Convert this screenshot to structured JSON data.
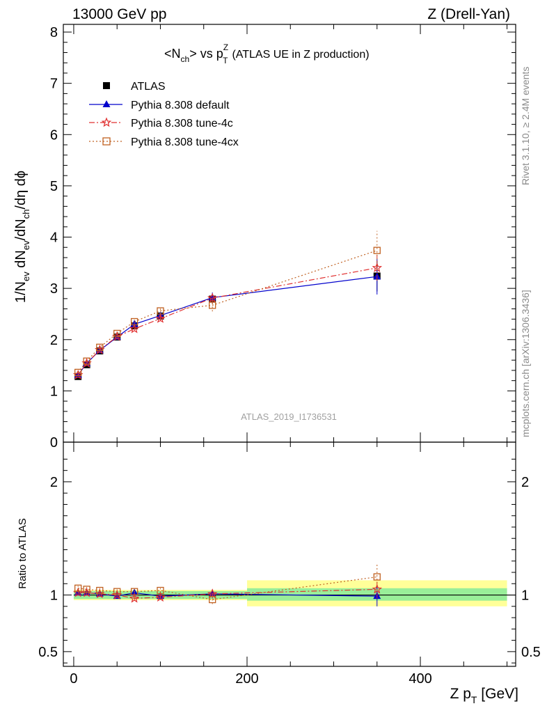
{
  "header": {
    "left": "13000 GeV pp",
    "right": "Z (Drell-Yan)"
  },
  "side_labels": {
    "rivet": "Rivet 3.1.10, ≥ 2.4M events",
    "mcplots": "mcplots.cern.ch [arXiv:1306.3436]"
  },
  "watermark": "ATLAS_2019_I1736531",
  "chart_data": [
    {
      "type": "scatter",
      "title_parts": {
        "lt": "<",
        "n": "N",
        "ch": "ch",
        "gt": ">",
        "vs": " vs ",
        "p": "p",
        "sup": "Z",
        "sub": "T"
      },
      "subtitle": "(ATLAS UE in Z production)",
      "ylabel_parts": {
        "a": "1/N",
        "a_sub": "ev",
        "b": " dN",
        "b_sub": "ev",
        "c": "/dN",
        "c_sub": "ch",
        "d": "/dη dϕ"
      },
      "xlim": [
        -12,
        510
      ],
      "ylim": [
        0,
        8.15
      ],
      "yticks": [
        0,
        1,
        2,
        3,
        4,
        5,
        6,
        7,
        8
      ],
      "legend_position": "top-left",
      "x": [
        5,
        15,
        30,
        50,
        70,
        100,
        160,
        350
      ],
      "series": [
        {
          "name": "ATLAS",
          "style": "data",
          "color": "#000000",
          "values": [
            1.28,
            1.51,
            1.78,
            2.05,
            2.27,
            2.46,
            2.79,
            3.24
          ],
          "errors": [
            0.02,
            0.02,
            0.03,
            0.03,
            0.04,
            0.05,
            0.09,
            0.3
          ]
        },
        {
          "name": "Pythia 8.308 default",
          "style": "solid",
          "color": "#0000cc",
          "values": [
            1.31,
            1.54,
            1.79,
            2.05,
            2.3,
            2.47,
            2.82,
            3.23
          ],
          "errors": [
            0.02,
            0.02,
            0.03,
            0.04,
            0.04,
            0.05,
            0.1,
            0.35
          ]
        },
        {
          "name": "Pythia 8.308 tune-4c",
          "style": "dashdot",
          "color": "#e03030",
          "values": [
            1.31,
            1.54,
            1.8,
            2.06,
            2.21,
            2.41,
            2.81,
            3.4
          ],
          "errors": [
            0.02,
            0.02,
            0.03,
            0.04,
            0.04,
            0.05,
            0.1,
            0.25
          ]
        },
        {
          "name": "Pythia 8.308 tune-4cx",
          "style": "dotted",
          "color": "#c06020",
          "values": [
            1.36,
            1.58,
            1.85,
            2.12,
            2.35,
            2.56,
            2.67,
            3.74
          ],
          "errors": [
            0.02,
            0.02,
            0.03,
            0.04,
            0.04,
            0.05,
            0.12,
            0.38
          ]
        }
      ]
    },
    {
      "type": "scatter",
      "ylabel": "Ratio to ATLAS",
      "xlabel_parts": {
        "a": "Z p",
        "sub": "T",
        "b": " [GeV]"
      },
      "xlim": [
        -12,
        510
      ],
      "ylim": [
        0.37,
        2.35
      ],
      "yticks": [
        0.5,
        1,
        2
      ],
      "xticks": [
        0,
        200,
        400
      ],
      "bands": [
        {
          "x": [
            0,
            200
          ],
          "inner": [
            0.965,
            1.035
          ],
          "outer": [
            0.955,
            1.045
          ]
        },
        {
          "x": [
            200,
            500
          ],
          "inner": [
            0.95,
            1.06
          ],
          "outer": [
            0.9,
            1.13
          ]
        }
      ],
      "x": [
        5,
        15,
        30,
        50,
        70,
        100,
        160,
        350
      ],
      "series": [
        {
          "name": "Pythia 8.308 default",
          "color": "#0000cc",
          "values": [
            1.02,
            1.02,
            1.01,
            0.99,
            1.02,
            0.99,
            1.01,
            0.99
          ],
          "errors": [
            0.02,
            0.02,
            0.02,
            0.02,
            0.02,
            0.02,
            0.04,
            0.09
          ]
        },
        {
          "name": "Pythia 8.308 tune-4c",
          "color": "#e03030",
          "values": [
            1.02,
            1.02,
            1.01,
            1.0,
            0.97,
            0.98,
            1.01,
            1.05
          ],
          "errors": [
            0.02,
            0.02,
            0.02,
            0.02,
            0.02,
            0.02,
            0.04,
            0.08
          ]
        },
        {
          "name": "Pythia 8.308 tune-4cx",
          "color": "#c06020",
          "values": [
            1.06,
            1.05,
            1.04,
            1.03,
            1.03,
            1.04,
            0.96,
            1.16
          ],
          "errors": [
            0.02,
            0.02,
            0.02,
            0.02,
            0.02,
            0.02,
            0.04,
            0.12
          ]
        }
      ]
    }
  ]
}
